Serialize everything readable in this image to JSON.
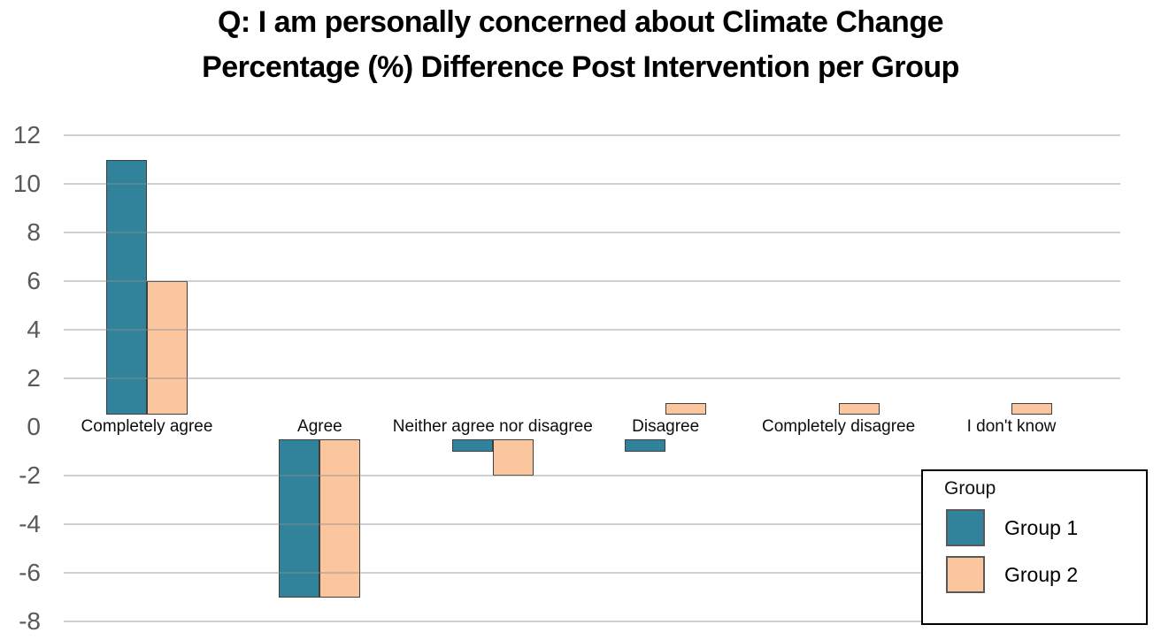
{
  "title": {
    "line1": "Q: I am personally concerned about Climate Change",
    "line2": "Percentage (%) Difference Post Intervention per Group"
  },
  "chart_data": {
    "type": "bar",
    "title": "Q: I am personally concerned about Climate Change — Percentage (%) Difference Post Intervention per Group",
    "categories": [
      "Completely agree",
      "Agree",
      "Neither agree nor disagree",
      "Disagree",
      "Completely disagree",
      "I don't know"
    ],
    "series": [
      {
        "name": "Group 1",
        "color": "#31829B",
        "values": [
          11,
          -7,
          -1,
          -1,
          0,
          0
        ]
      },
      {
        "name": "Group 2",
        "color": "#FBC59D",
        "values": [
          6,
          -7,
          -2,
          1,
          1,
          1
        ]
      }
    ],
    "ylim": [
      -8,
      12
    ],
    "yticks": [
      12,
      10,
      8,
      6,
      4,
      2,
      0,
      -2,
      -4,
      -6,
      -8
    ],
    "grid": true,
    "zero_gridline": false,
    "legend_position": "bottom-right"
  },
  "legend": {
    "title": "Group",
    "entries": [
      {
        "label": "Group 1",
        "color": "#31829B"
      },
      {
        "label": "Group 2",
        "color": "#FBC59D"
      }
    ]
  },
  "colors": {
    "group1": "#31829B",
    "group2": "#FBC59D",
    "bar_border": "#3f3f3f",
    "gridline": "#c8c8c8",
    "y_axis_label": "#595959",
    "category_label": "#0d0d0d",
    "title_text": "#000000",
    "legend_border": "#000000"
  }
}
